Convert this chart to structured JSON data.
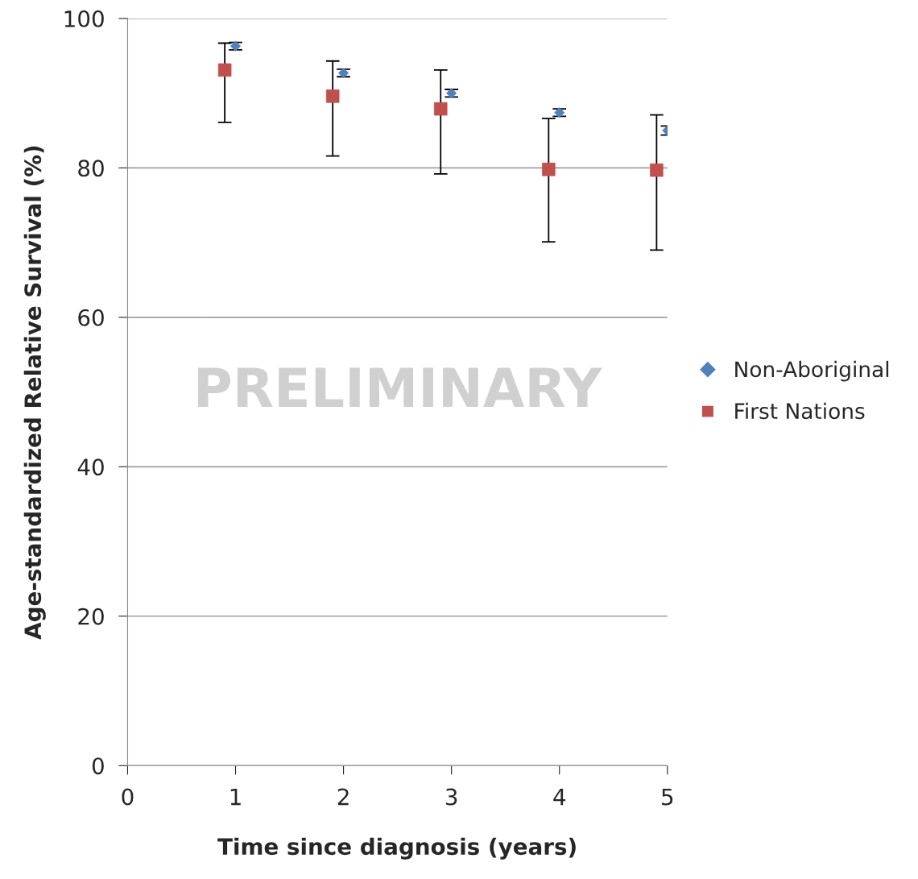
{
  "chart_data": {
    "type": "scatter",
    "xlabel": "Time since diagnosis (years)",
    "ylabel": "Age-standardized Relative Survival (%)",
    "xlim": [
      0,
      5
    ],
    "xticks": [
      0,
      1,
      2,
      3,
      4,
      5
    ],
    "ylim": [
      0,
      100
    ],
    "yticks": [
      0,
      20,
      40,
      60,
      80,
      100
    ],
    "grid": "y",
    "legend": "right",
    "series": [
      {
        "name": "Non-Aboriginal",
        "color": "#4f81bd",
        "marker": "diamond",
        "x": [
          1,
          2,
          3,
          4,
          5
        ],
        "values": [
          96.3,
          92.7,
          90.0,
          87.4,
          85.0
        ],
        "errors": [
          [
            95.8,
            96.8
          ],
          [
            92.2,
            93.2
          ],
          [
            89.5,
            90.5
          ],
          [
            86.9,
            87.9
          ],
          [
            84.4,
            85.6
          ]
        ]
      },
      {
        "name": "First Nations",
        "color": "#c0504d",
        "marker": "square",
        "x": [
          0.9,
          1.9,
          2.9,
          3.9,
          4.9
        ],
        "values": [
          93.1,
          89.6,
          87.9,
          79.8,
          79.7
        ],
        "errors": [
          [
            86.1,
            96.7
          ],
          [
            81.6,
            94.3
          ],
          [
            79.2,
            93.1
          ],
          [
            70.1,
            86.6
          ],
          [
            69.0,
            87.1
          ]
        ]
      }
    ],
    "annotations": [
      "PRELIMINARY"
    ]
  }
}
